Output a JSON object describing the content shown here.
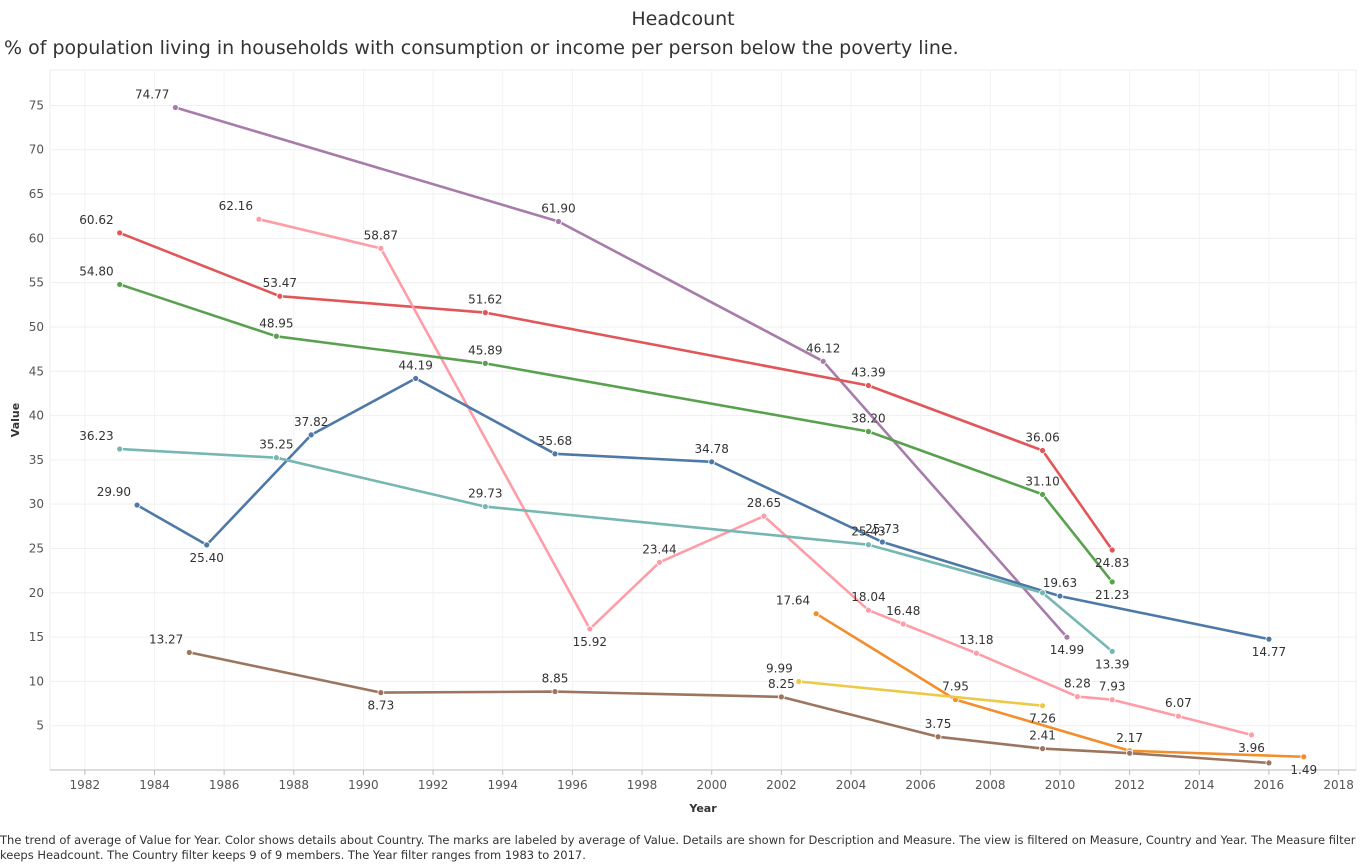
{
  "chart_data": {
    "type": "line",
    "title": "Headcount",
    "subtitle": "% of population living in households with consumption or income per person below the poverty line.",
    "xlabel": "Year",
    "ylabel": "Value",
    "xlim": [
      1981,
      2018.5
    ],
    "ylim": [
      0,
      79
    ],
    "xticks": [
      1982,
      1984,
      1986,
      1988,
      1990,
      1992,
      1994,
      1996,
      1998,
      2000,
      2002,
      2004,
      2006,
      2008,
      2010,
      2012,
      2014,
      2016,
      2018
    ],
    "yticks": [
      5,
      10,
      15,
      20,
      25,
      30,
      35,
      40,
      45,
      50,
      55,
      60,
      65,
      70,
      75
    ],
    "grid": true,
    "series": [
      {
        "color": "#a77caa",
        "points": [
          [
            1984.6,
            74.77,
            "74.77"
          ],
          [
            1995.6,
            61.9,
            "61.90"
          ],
          [
            2003.2,
            46.12,
            "46.12"
          ],
          [
            2010.2,
            14.99,
            "14.99"
          ]
        ]
      },
      {
        "color": "#e15759",
        "points": [
          [
            1983.0,
            60.62,
            "60.62"
          ],
          [
            1987.6,
            53.47,
            "53.47"
          ],
          [
            1993.5,
            51.62,
            "51.62"
          ],
          [
            2004.5,
            43.39,
            "43.39"
          ],
          [
            2009.5,
            36.06,
            "36.06"
          ],
          [
            2011.5,
            24.83,
            "24.83"
          ]
        ]
      },
      {
        "color": "#ff9da7",
        "points": [
          [
            1987.0,
            62.16,
            "62.16"
          ],
          [
            1990.5,
            58.87,
            "58.87"
          ],
          [
            1996.5,
            15.92,
            "15.92"
          ],
          [
            1998.5,
            23.44,
            "23.44"
          ],
          [
            2001.5,
            28.65,
            "28.65"
          ],
          [
            2004.5,
            18.04,
            "18.04"
          ],
          [
            2005.5,
            16.48,
            "16.48"
          ],
          [
            2007.6,
            13.18,
            "13.18"
          ],
          [
            2010.5,
            8.28,
            "8.28"
          ],
          [
            2011.5,
            7.93,
            "7.93"
          ],
          [
            2013.4,
            6.07,
            "6.07"
          ],
          [
            2015.5,
            3.96,
            "3.96"
          ]
        ]
      },
      {
        "color": "#59a14f",
        "points": [
          [
            1983.0,
            54.8,
            "54.80"
          ],
          [
            1987.5,
            48.95,
            "48.95"
          ],
          [
            1993.5,
            45.89,
            "45.89"
          ],
          [
            2004.5,
            38.2,
            "38.20"
          ],
          [
            2009.5,
            31.1,
            "31.10"
          ],
          [
            2011.5,
            21.23,
            "21.23"
          ]
        ]
      },
      {
        "color": "#4e79a7",
        "points": [
          [
            1983.5,
            29.9,
            "29.90"
          ],
          [
            1985.5,
            25.4,
            "25.40"
          ],
          [
            1988.5,
            37.82,
            "37.82"
          ],
          [
            1991.5,
            44.19,
            "44.19"
          ],
          [
            1995.5,
            35.68,
            "35.68"
          ],
          [
            2000.0,
            34.78,
            "34.78"
          ],
          [
            2004.9,
            25.73,
            "25.73"
          ],
          [
            2010.0,
            19.63,
            "19.63"
          ],
          [
            2016.0,
            14.77,
            "14.77"
          ]
        ]
      },
      {
        "color": "#76b7b2",
        "points": [
          [
            1983.0,
            36.23,
            "36.23"
          ],
          [
            1987.5,
            35.25,
            "35.25"
          ],
          [
            1993.5,
            29.73,
            "29.73"
          ],
          [
            2004.5,
            25.43,
            "25.43"
          ],
          [
            2009.5,
            20.0,
            ""
          ],
          [
            2011.5,
            13.39,
            "13.39"
          ]
        ]
      },
      {
        "color": "#f28e2b",
        "points": [
          [
            2003.0,
            17.64,
            "17.64"
          ],
          [
            2007.0,
            7.95,
            "7.95"
          ],
          [
            2012.0,
            2.17,
            "2.17"
          ],
          [
            2017.0,
            1.49,
            "1.49"
          ]
        ]
      },
      {
        "color": "#edc948",
        "points": [
          [
            2002.5,
            9.99,
            "9.99"
          ],
          [
            2009.5,
            7.26,
            "7.26"
          ]
        ]
      },
      {
        "color": "#9c755f",
        "points": [
          [
            1985.0,
            13.27,
            "13.27"
          ],
          [
            1990.5,
            8.73,
            "8.73"
          ],
          [
            1995.5,
            8.85,
            "8.85"
          ],
          [
            2002.0,
            8.25,
            "8.25"
          ],
          [
            2006.5,
            3.75,
            "3.75"
          ],
          [
            2009.5,
            2.41,
            "2.41"
          ],
          [
            2012.0,
            1.9,
            ""
          ],
          [
            2016.0,
            0.8,
            ""
          ]
        ]
      }
    ]
  },
  "footer": "The trend of average of Value for Year.  Color shows details about Country.  The marks are labeled by average of Value.  Details are shown for Description and Measure. The view is filtered on Measure, Country and Year. The Measure filter keeps Headcount. The Country filter keeps 9 of 9 members. The Year filter ranges from 1983 to 2017."
}
